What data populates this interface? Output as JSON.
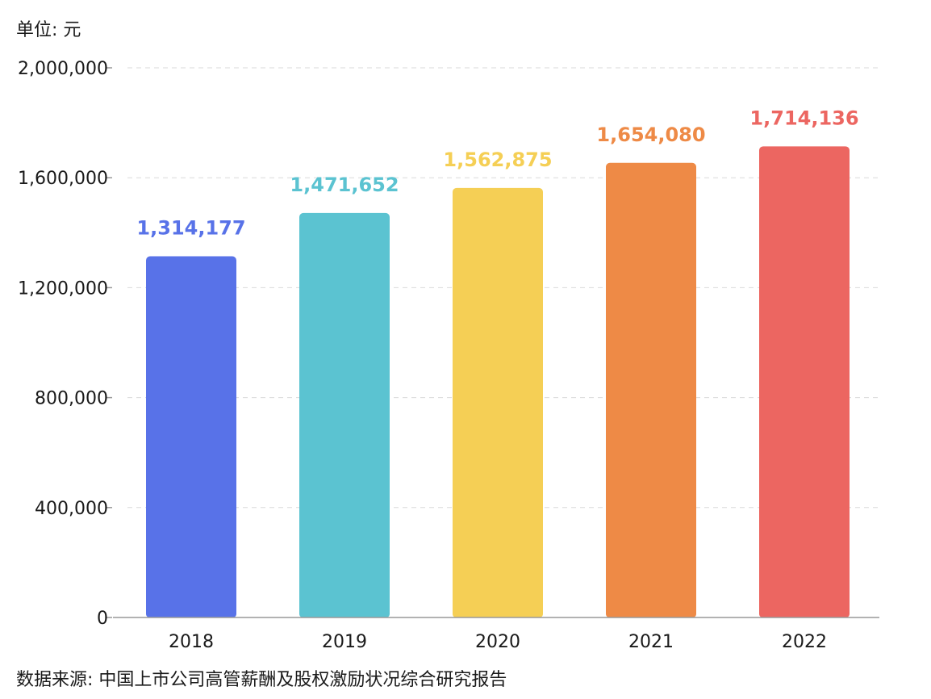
{
  "unit_label": "单位: 元",
  "source_label": "数据来源: 中国上市公司高管薪酬及股权激励状况综合研究报告",
  "chart_data": {
    "type": "bar",
    "title": "",
    "xlabel": "",
    "ylabel": "",
    "categories": [
      "2018",
      "2019",
      "2020",
      "2021",
      "2022"
    ],
    "values": [
      1314177,
      1471652,
      1562875,
      1654080,
      1714136
    ],
    "value_labels": [
      "1,314,177",
      "1,471,652",
      "1,562,875",
      "1,654,080",
      "1,714,136"
    ],
    "colors": [
      "#5872e8",
      "#5bc3d1",
      "#f5cf55",
      "#ee8a46",
      "#ec6661"
    ],
    "ylim": [
      0,
      2000000
    ],
    "yticks": [
      0,
      400000,
      800000,
      1200000,
      1600000,
      2000000
    ],
    "ytick_labels": [
      "0",
      "400,000",
      "800,000",
      "1,200,000",
      "1,600,000",
      "2,000,000"
    ],
    "grid": true,
    "legend": "none"
  }
}
